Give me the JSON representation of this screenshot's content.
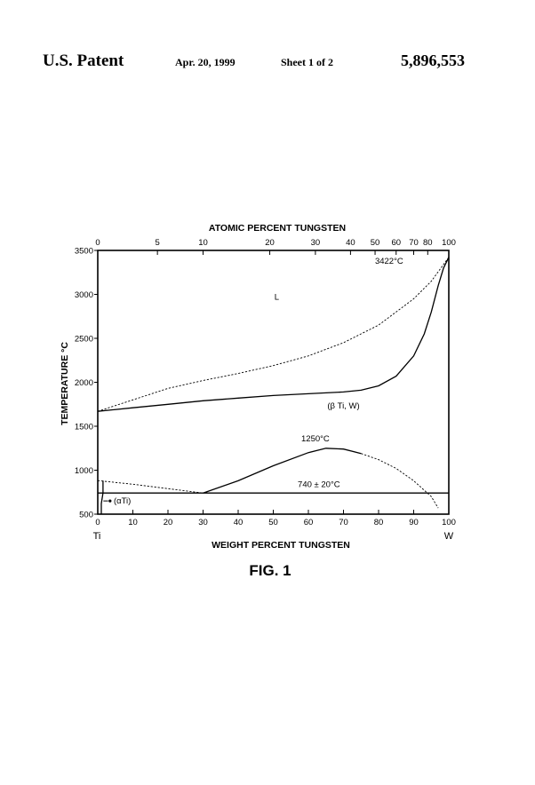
{
  "header": {
    "title": "U.S. Patent",
    "date": "Apr. 20, 1999",
    "sheet": "Sheet 1 of 2",
    "patent_number": "5,896,553"
  },
  "figure_label": "FIG. 1",
  "chart_data": {
    "type": "line",
    "title": "",
    "top_axis": {
      "label": "ATOMIC PERCENT TUNGSTEN",
      "ticks": [
        {
          "label": "0",
          "wt": 0
        },
        {
          "label": "5",
          "wt": 17
        },
        {
          "label": "10",
          "wt": 30
        },
        {
          "label": "20",
          "wt": 49
        },
        {
          "label": "30",
          "wt": 62
        },
        {
          "label": "40",
          "wt": 72
        },
        {
          "label": "50",
          "wt": 79
        },
        {
          "label": "60",
          "wt": 85
        },
        {
          "label": "70",
          "wt": 90
        },
        {
          "label": "80",
          "wt": 94
        },
        {
          "label": "100",
          "wt": 100
        }
      ]
    },
    "xlabel": "WEIGHT PERCENT TUNGSTEN",
    "x_ticks": [
      0,
      10,
      20,
      30,
      40,
      50,
      60,
      70,
      80,
      90,
      100
    ],
    "xlim": [
      0,
      100
    ],
    "ylabel": "TEMPERATURE °C",
    "y_ticks": [
      500,
      1000,
      1500,
      2000,
      2500,
      3000,
      3500
    ],
    "ylim": [
      500,
      3500
    ],
    "x_end_labels": {
      "left": "Ti",
      "right": "W"
    },
    "series": [
      {
        "style": "dashed",
        "points": [
          [
            0,
            1670
          ],
          [
            10,
            1800
          ],
          [
            20,
            1930
          ],
          [
            30,
            2020
          ],
          [
            40,
            2100
          ],
          [
            50,
            2190
          ],
          [
            60,
            2300
          ],
          [
            70,
            2450
          ],
          [
            80,
            2650
          ],
          [
            90,
            2950
          ],
          [
            95,
            3150
          ],
          [
            100,
            3422
          ]
        ]
      },
      {
        "style": "solid",
        "points": [
          [
            0,
            1670
          ],
          [
            10,
            1710
          ],
          [
            20,
            1750
          ],
          [
            30,
            1790
          ],
          [
            40,
            1820
          ],
          [
            50,
            1850
          ],
          [
            60,
            1870
          ],
          [
            70,
            1890
          ],
          [
            75,
            1910
          ],
          [
            80,
            1960
          ],
          [
            85,
            2070
          ],
          [
            90,
            2300
          ],
          [
            93,
            2550
          ],
          [
            95,
            2800
          ],
          [
            97,
            3100
          ],
          [
            98.5,
            3300
          ],
          [
            100,
            3422
          ]
        ]
      },
      {
        "style": "solid",
        "points": [
          [
            30,
            740
          ],
          [
            40,
            880
          ],
          [
            50,
            1050
          ],
          [
            60,
            1200
          ],
          [
            65,
            1250
          ],
          [
            70,
            1240
          ],
          [
            75,
            1190
          ]
        ]
      },
      {
        "style": "dashed",
        "points": [
          [
            75,
            1190
          ],
          [
            80,
            1120
          ],
          [
            85,
            1020
          ],
          [
            90,
            880
          ],
          [
            95,
            700
          ],
          [
            97,
            570
          ]
        ]
      },
      {
        "style": "dashed",
        "points": [
          [
            0,
            882
          ],
          [
            10,
            840
          ],
          [
            20,
            790
          ],
          [
            30,
            740
          ]
        ]
      },
      {
        "style": "solid",
        "points": [
          [
            0,
            740
          ],
          [
            100,
            740
          ]
        ]
      },
      {
        "style": "solid",
        "points": [
          [
            1,
            500
          ],
          [
            1,
            620
          ],
          [
            1.5,
            740
          ],
          [
            1.5,
            882
          ]
        ]
      }
    ],
    "annotations": [
      {
        "text": "L",
        "x": 51,
        "y": 2940
      },
      {
        "text": "3422°C",
        "x": 83,
        "y": 3350
      },
      {
        "text": "(β Ti, W)",
        "x": 70,
        "y": 1700
      },
      {
        "text": "1250°C",
        "x": 62,
        "y": 1330
      },
      {
        "text": "740 ± 20°C",
        "x": 63,
        "y": 810
      },
      {
        "text": "(αTi)",
        "x": 7,
        "y": 620
      }
    ]
  }
}
